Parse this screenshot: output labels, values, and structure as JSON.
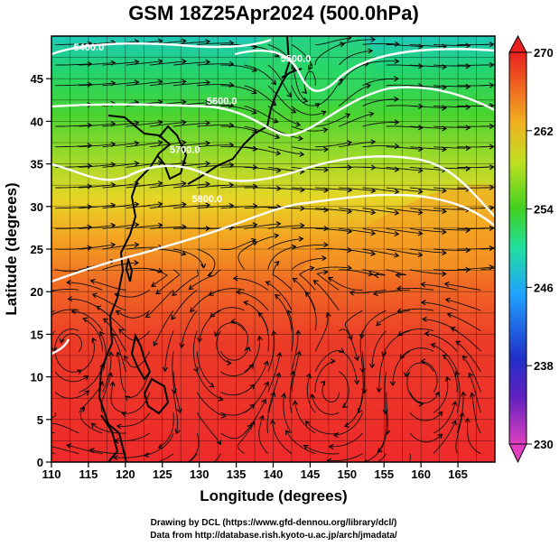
{
  "chart_data": {
    "type": "heatmap",
    "title": "GSM 18Z25Apr2024 (500.0hPa)",
    "xlabel": "Longitude (degrees)",
    "ylabel": "Latitude  (degrees)",
    "xlim": [
      110,
      170
    ],
    "ylim": [
      0,
      50
    ],
    "x_ticks": [
      "110",
      "115",
      "120",
      "125",
      "130",
      "135",
      "140",
      "145",
      "150",
      "155",
      "160",
      "165"
    ],
    "y_ticks": [
      "0",
      "5",
      "10",
      "15",
      "20",
      "25",
      "30",
      "35",
      "40",
      "45"
    ],
    "grid": true,
    "field": "temperature",
    "colorbar": {
      "range": [
        230,
        270
      ],
      "ticks": [
        "230",
        "238",
        "246",
        "254",
        "262",
        "270"
      ],
      "stops": [
        "#e040c0",
        "#2020c0",
        "#20a0ff",
        "#20e0a0",
        "#40d020",
        "#e0e020",
        "#f08020",
        "#e82020"
      ]
    },
    "contours": [
      {
        "label": "5400.0",
        "lon": 113,
        "lat": 48.3
      },
      {
        "label": "5500.0",
        "lon": 141,
        "lat": 47.0
      },
      {
        "label": "5600.0",
        "lon": 131,
        "lat": 42.0
      },
      {
        "label": "5700.0",
        "lon": 126,
        "lat": 36.3
      },
      {
        "label": "5800.0",
        "lon": 129,
        "lat": 30.5
      }
    ],
    "streamlines": true,
    "coastlines": true
  },
  "credits": {
    "line1": "Drawing by DCL (https://www.gfd-dennou.org/library/dcl/)",
    "line2": "Data from http://database.rish.kyoto-u.ac.jp/arch/jmadata/"
  }
}
